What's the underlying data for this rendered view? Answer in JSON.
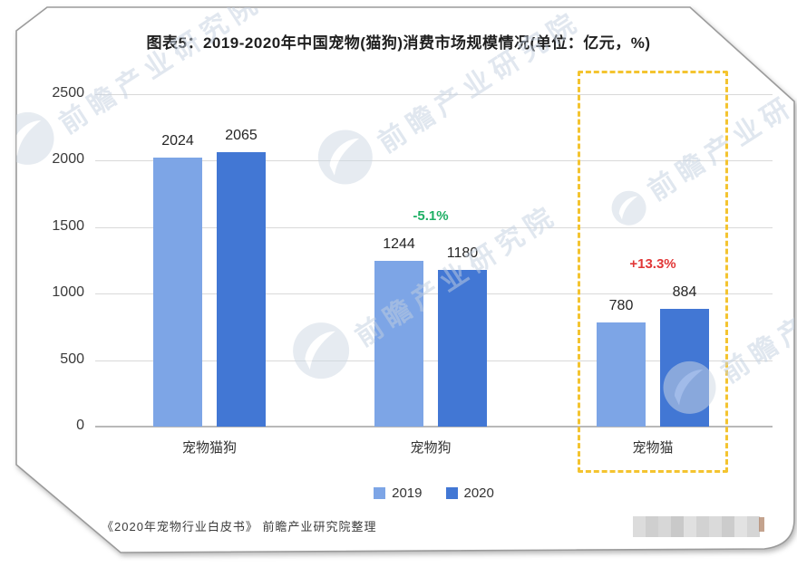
{
  "page": {
    "title": "图表5：2019-2020年中国宠物(猫狗)消费市场规模情况(单位：亿元，%)",
    "footer_source": "《2020年宠物行业白皮书》 前瞻产业研究院整理",
    "watermark_text": "前瞻产业研究院"
  },
  "chart_data": {
    "type": "bar",
    "title": "图表5：2019-2020年中国宠物(猫狗)消费市场规模情况(单位：亿元，%)",
    "unit": "亿元，%",
    "categories": [
      "宠物猫狗",
      "宠物狗",
      "宠物猫"
    ],
    "series": [
      {
        "name": "2019",
        "color": "#7DA5E6",
        "values": [
          2024,
          1244,
          780
        ]
      },
      {
        "name": "2020",
        "color": "#4277D4",
        "values": [
          2065,
          1180,
          884
        ]
      }
    ],
    "annotations": [
      {
        "category": "宠物狗",
        "text": "-5.1%",
        "color": "#1EAF64"
      },
      {
        "category": "宠物猫",
        "text": "+13.3%",
        "color": "#E13737"
      }
    ],
    "highlight": {
      "category": "宠物猫",
      "style": "dashed-box",
      "color": "#F4C430"
    },
    "ylim": [
      0,
      2500
    ],
    "yticks": [
      0,
      500,
      1000,
      1500,
      2000,
      2500
    ],
    "grid": true,
    "legend_position": "bottom"
  }
}
